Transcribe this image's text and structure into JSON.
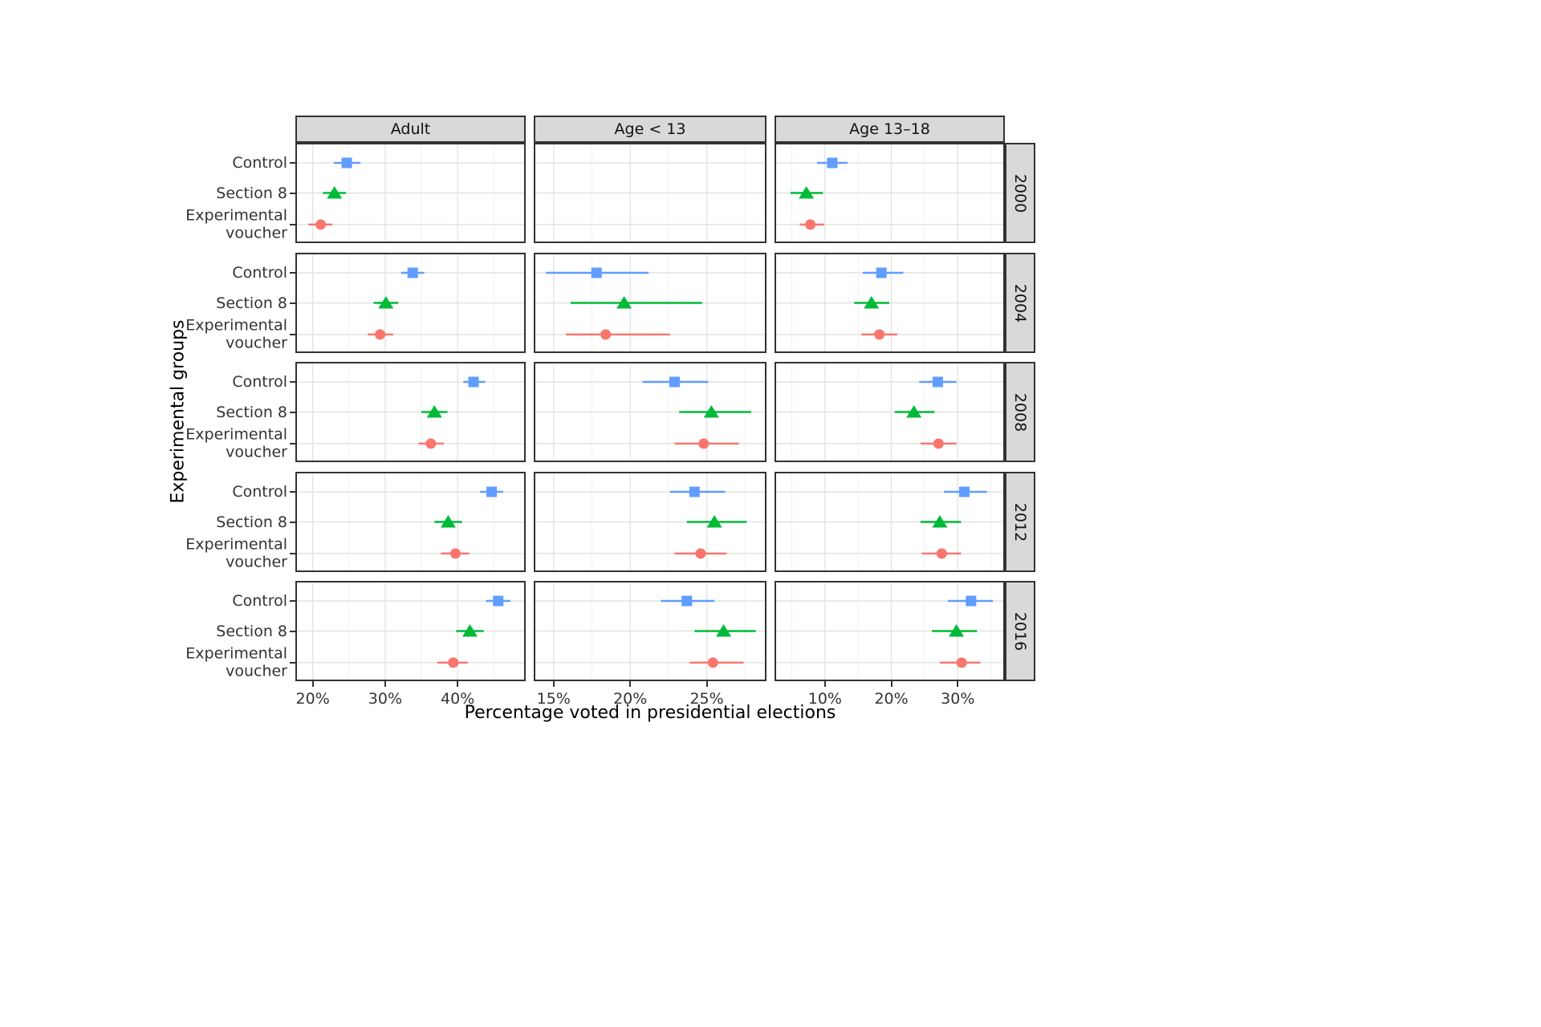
{
  "axes": {
    "x_title": "Percentage voted in presidential elections",
    "y_title": "Experimental groups"
  },
  "palette": {
    "control": "#619CFF",
    "section8": "#00BA38",
    "experimental_voucher": "#F8766D"
  },
  "groups": [
    {
      "label": "Control",
      "lines": [
        "Control"
      ],
      "marker": "square",
      "color": "#619CFF"
    },
    {
      "label": "Section 8",
      "lines": [
        "Section 8"
      ],
      "marker": "triangle",
      "color": "#00BA38"
    },
    {
      "label": "Experimental voucher",
      "lines": [
        "Experimental",
        "voucher"
      ],
      "marker": "circle",
      "color": "#F8766D"
    }
  ],
  "facet_cols": [
    {
      "label": "Adult",
      "ticks": [
        20,
        30,
        40
      ],
      "tick_labels": [
        "20%",
        "30%",
        "40%"
      ],
      "minor": [
        25,
        35,
        45
      ],
      "domain": [
        17.6,
        49.4
      ]
    },
    {
      "label": "Age < 13",
      "ticks": [
        15,
        20,
        25
      ],
      "tick_labels": [
        "15%",
        "20%",
        "25%"
      ],
      "minor": [
        17.5,
        22.5,
        27.5
      ],
      "domain": [
        13.7,
        28.9
      ]
    },
    {
      "label": "Age 13–18",
      "ticks": [
        10,
        20,
        30
      ],
      "tick_labels": [
        "10%",
        "20%",
        "30%"
      ],
      "minor": [
        5,
        15,
        25,
        35
      ],
      "domain": [
        2.4,
        37.1
      ]
    }
  ],
  "facet_rows": [
    "2000",
    "2004",
    "2008",
    "2012",
    "2016"
  ],
  "chart_data": {
    "type": "scatter",
    "title": "",
    "x_unit": "percent",
    "xlabel": "Percentage voted in presidential elections",
    "ylabel": "Experimental groups",
    "legend": "none (groups labeled on y axis)",
    "note": "Point estimate with horizontal interval (lo, hi), values read from plot",
    "panels": [
      {
        "year": "2000",
        "age": "Adult",
        "points": [
          {
            "group": "Control",
            "x": 24.7,
            "lo": 22.9,
            "hi": 26.6
          },
          {
            "group": "Section 8",
            "x": 23.0,
            "lo": 21.4,
            "hi": 24.6
          },
          {
            "group": "Experimental voucher",
            "x": 21.1,
            "lo": 19.4,
            "hi": 22.7
          }
        ]
      },
      {
        "year": "2000",
        "age": "Age < 13",
        "points": []
      },
      {
        "year": "2000",
        "age": "Age 13–18",
        "points": [
          {
            "group": "Control",
            "x": 11.1,
            "lo": 8.8,
            "hi": 13.4
          },
          {
            "group": "Section 8",
            "x": 7.2,
            "lo": 4.8,
            "hi": 9.7
          },
          {
            "group": "Experimental voucher",
            "x": 7.8,
            "lo": 6.2,
            "hi": 9.9
          }
        ]
      },
      {
        "year": "2004",
        "age": "Adult",
        "points": [
          {
            "group": "Control",
            "x": 33.8,
            "lo": 32.2,
            "hi": 35.4
          },
          {
            "group": "Section 8",
            "x": 30.1,
            "lo": 28.4,
            "hi": 31.8
          },
          {
            "group": "Experimental voucher",
            "x": 29.3,
            "lo": 27.6,
            "hi": 31.1
          }
        ]
      },
      {
        "year": "2004",
        "age": "Age < 13",
        "points": [
          {
            "group": "Control",
            "x": 17.8,
            "lo": 14.5,
            "hi": 21.2
          },
          {
            "group": "Section 8",
            "x": 19.6,
            "lo": 16.1,
            "hi": 24.7
          },
          {
            "group": "Experimental voucher",
            "x": 18.4,
            "lo": 15.8,
            "hi": 22.6
          }
        ]
      },
      {
        "year": "2004",
        "age": "Age 13–18",
        "points": [
          {
            "group": "Control",
            "x": 18.5,
            "lo": 15.7,
            "hi": 21.8
          },
          {
            "group": "Section 8",
            "x": 17.0,
            "lo": 14.4,
            "hi": 19.7
          },
          {
            "group": "Experimental voucher",
            "x": 18.2,
            "lo": 15.5,
            "hi": 20.9
          }
        ]
      },
      {
        "year": "2008",
        "age": "Adult",
        "points": [
          {
            "group": "Control",
            "x": 42.2,
            "lo": 40.8,
            "hi": 43.8
          },
          {
            "group": "Section 8",
            "x": 36.8,
            "lo": 35.0,
            "hi": 38.6
          },
          {
            "group": "Experimental voucher",
            "x": 36.3,
            "lo": 34.6,
            "hi": 38.1
          }
        ]
      },
      {
        "year": "2008",
        "age": "Age < 13",
        "points": [
          {
            "group": "Control",
            "x": 22.9,
            "lo": 20.8,
            "hi": 25.1
          },
          {
            "group": "Section 8",
            "x": 25.3,
            "lo": 23.2,
            "hi": 27.9
          },
          {
            "group": "Experimental voucher",
            "x": 24.8,
            "lo": 22.9,
            "hi": 27.1
          }
        ]
      },
      {
        "year": "2008",
        "age": "Age 13–18",
        "points": [
          {
            "group": "Control",
            "x": 27.0,
            "lo": 24.2,
            "hi": 29.8
          },
          {
            "group": "Section 8",
            "x": 23.4,
            "lo": 20.5,
            "hi": 26.5
          },
          {
            "group": "Experimental voucher",
            "x": 27.1,
            "lo": 24.4,
            "hi": 29.8
          }
        ]
      },
      {
        "year": "2012",
        "age": "Adult",
        "points": [
          {
            "group": "Control",
            "x": 44.7,
            "lo": 43.1,
            "hi": 46.3
          },
          {
            "group": "Section 8",
            "x": 38.7,
            "lo": 36.8,
            "hi": 40.6
          },
          {
            "group": "Experimental voucher",
            "x": 39.7,
            "lo": 37.7,
            "hi": 41.6
          }
        ]
      },
      {
        "year": "2012",
        "age": "Age < 13",
        "points": [
          {
            "group": "Control",
            "x": 24.2,
            "lo": 22.6,
            "hi": 26.2
          },
          {
            "group": "Section 8",
            "x": 25.5,
            "lo": 23.7,
            "hi": 27.6
          },
          {
            "group": "Experimental voucher",
            "x": 24.6,
            "lo": 22.9,
            "hi": 26.3
          }
        ]
      },
      {
        "year": "2012",
        "age": "Age 13–18",
        "points": [
          {
            "group": "Control",
            "x": 31.0,
            "lo": 27.9,
            "hi": 34.4
          },
          {
            "group": "Section 8",
            "x": 27.3,
            "lo": 24.4,
            "hi": 30.5
          },
          {
            "group": "Experimental voucher",
            "x": 27.6,
            "lo": 24.6,
            "hi": 30.5
          }
        ]
      },
      {
        "year": "2016",
        "age": "Adult",
        "points": [
          {
            "group": "Control",
            "x": 45.6,
            "lo": 43.9,
            "hi": 47.3
          },
          {
            "group": "Section 8",
            "x": 41.7,
            "lo": 39.8,
            "hi": 43.6
          },
          {
            "group": "Experimental voucher",
            "x": 39.4,
            "lo": 37.2,
            "hi": 41.4
          }
        ]
      },
      {
        "year": "2016",
        "age": "Age < 13",
        "points": [
          {
            "group": "Control",
            "x": 23.7,
            "lo": 22.0,
            "hi": 25.5
          },
          {
            "group": "Section 8",
            "x": 26.1,
            "lo": 24.2,
            "hi": 28.2
          },
          {
            "group": "Experimental voucher",
            "x": 25.4,
            "lo": 23.9,
            "hi": 27.4
          }
        ]
      },
      {
        "year": "2016",
        "age": "Age 13–18",
        "points": [
          {
            "group": "Control",
            "x": 32.0,
            "lo": 28.5,
            "hi": 35.3
          },
          {
            "group": "Section 8",
            "x": 29.8,
            "lo": 26.1,
            "hi": 32.9
          },
          {
            "group": "Experimental voucher",
            "x": 30.6,
            "lo": 27.3,
            "hi": 33.4
          }
        ]
      }
    ]
  }
}
